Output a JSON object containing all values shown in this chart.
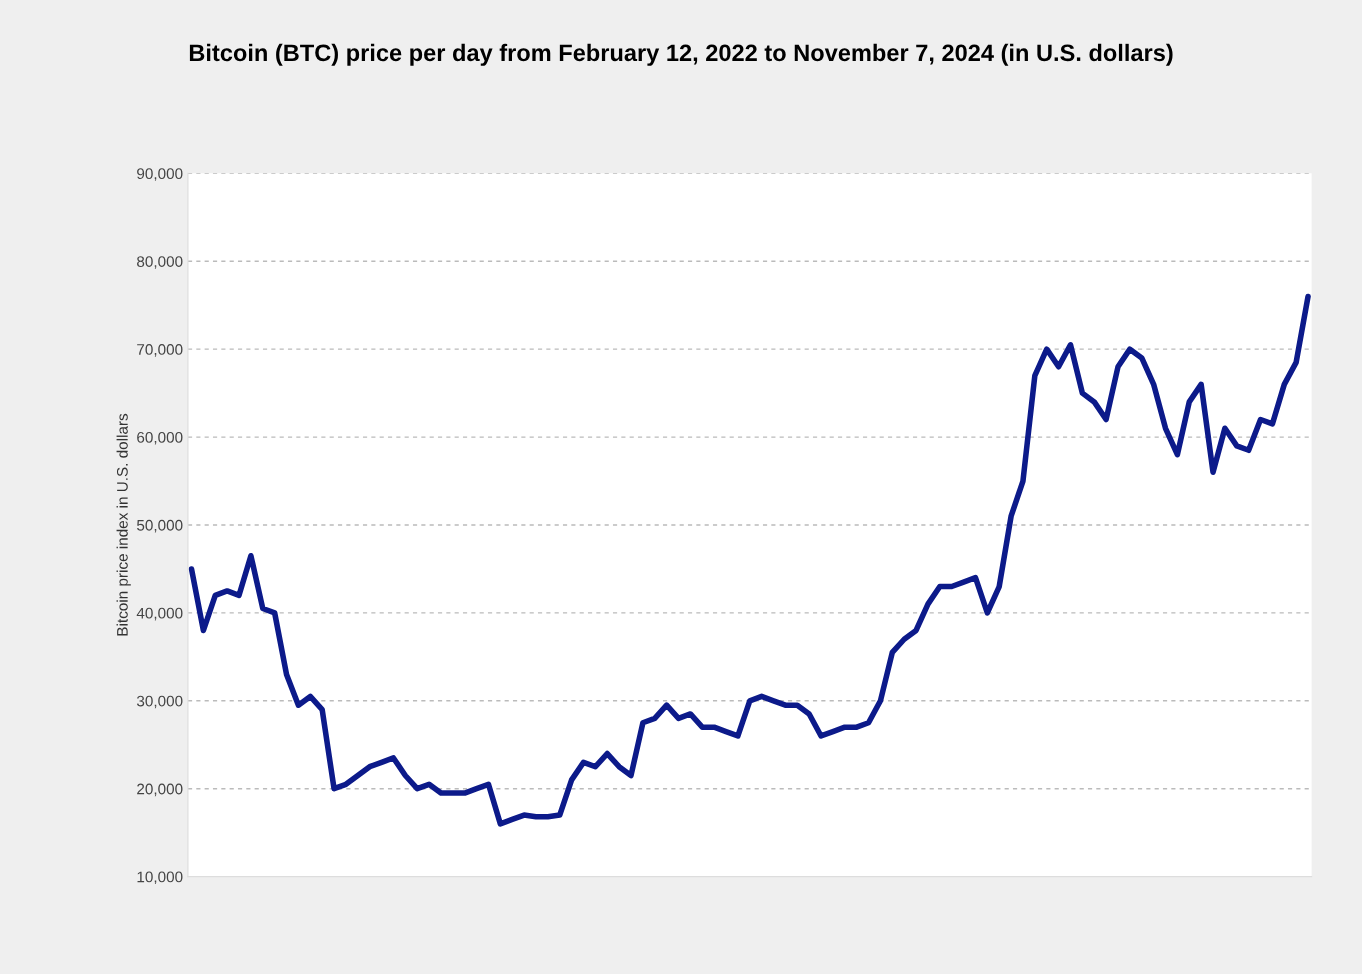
{
  "chart_data": {
    "type": "line",
    "title": "Bitcoin (BTC) price per day from February 12, 2022 to November 7, 2024 (in U.S. dollars)",
    "ylabel": "Bitcoin price index in U.S. dollars",
    "categories": [
      null,
      null,
      null,
      null,
      null,
      null,
      null,
      null,
      null,
      null,
      null,
      null,
      null,
      null,
      null,
      null,
      null,
      null,
      null,
      null,
      null,
      null,
      null,
      null,
      null,
      null,
      null,
      null,
      null,
      null,
      null,
      null,
      null,
      null,
      null,
      null,
      null,
      null,
      null,
      null,
      null,
      null,
      null,
      null,
      null,
      null,
      null,
      null,
      null,
      null,
      null,
      null,
      null,
      null,
      null,
      null,
      null,
      null,
      null,
      null,
      null,
      null,
      null,
      null,
      null,
      null,
      null,
      null,
      null,
      null,
      null,
      null,
      null,
      null,
      null,
      null,
      null,
      null,
      null,
      null,
      null,
      null,
      null,
      null,
      null,
      null,
      null,
      null,
      null,
      null,
      null,
      null,
      null,
      null,
      null
    ],
    "series": [
      {
        "color": "#0c1a8a",
        "values": [
          45000,
          38000,
          42000,
          42500,
          42000,
          46500,
          40500,
          40000,
          33000,
          29500,
          30500,
          29000,
          20000,
          20500,
          21500,
          22500,
          23000,
          23500,
          21500,
          20000,
          20500,
          19500,
          19500,
          19500,
          20000,
          20500,
          16000,
          16500,
          17000,
          16800,
          16800,
          17000,
          21000,
          23000,
          22500,
          24000,
          22500,
          21500,
          27500,
          28000,
          29500,
          28000,
          28500,
          27000,
          27000,
          26500,
          26000,
          30000,
          30500,
          30000,
          29500,
          29500,
          28500,
          26000,
          26500,
          27000,
          27000,
          27500,
          30000,
          35500,
          37000,
          38000,
          41000,
          43000,
          43000,
          43500,
          44000,
          40000,
          43000,
          51000,
          55000,
          67000,
          70000,
          68000,
          70500,
          65000,
          64000,
          62000,
          68000,
          70000,
          69000,
          66000,
          61000,
          58000,
          64000,
          66000,
          56000,
          61000,
          59000,
          58500,
          62000,
          61500,
          66000,
          68500,
          76000
        ]
      }
    ],
    "ylim": [
      10000,
      90000
    ],
    "yticks": [
      {
        "value": 10000,
        "label": "10,000"
      },
      {
        "value": 20000,
        "label": "20,000"
      },
      {
        "value": 30000,
        "label": "30,000"
      },
      {
        "value": 40000,
        "label": "40,000"
      },
      {
        "value": 50000,
        "label": "50,000"
      },
      {
        "value": 60000,
        "label": "60,000"
      },
      {
        "value": 70000,
        "label": "70,000"
      },
      {
        "value": 80000,
        "label": "80,000"
      },
      {
        "value": 90000,
        "label": "90,000"
      }
    ],
    "grid": "y",
    "tick_labels": "y"
  }
}
